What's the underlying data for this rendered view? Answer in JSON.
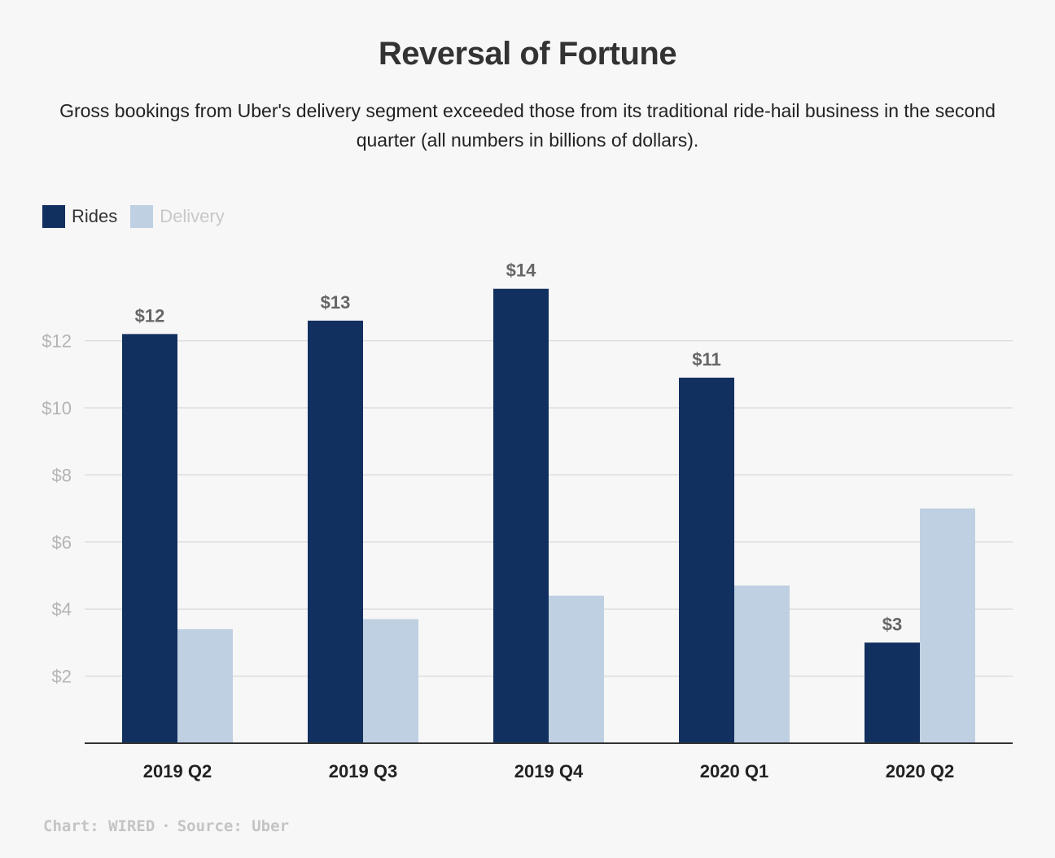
{
  "title": "Reversal of Fortune",
  "subtitle": "Gross bookings from Uber's delivery segment exceeded those from its traditional ride-hail business in the second quarter (all numbers in billions of dollars).",
  "footer": {
    "chart_credit": "Chart: WIRED",
    "separator": "·",
    "source": "Source: Uber"
  },
  "colors": {
    "rides": "#12305f",
    "delivery": "#bfd0e2",
    "rides_legend_text": "#333333",
    "delivery_legend_text": "#c8c8c8",
    "grid": "#dddddd",
    "axis_tick_text": "#b4b4b4",
    "value_label_text": "#666666"
  },
  "chart_data": {
    "type": "bar",
    "categories": [
      "2019 Q2",
      "2019 Q3",
      "2019 Q4",
      "2020 Q1",
      "2020 Q2"
    ],
    "series": [
      {
        "name": "Rides",
        "values": [
          12.2,
          12.6,
          13.55,
          10.9,
          3.0
        ],
        "labels": [
          "$12",
          "$13",
          "$14",
          "$11",
          "$3"
        ]
      },
      {
        "name": "Delivery",
        "values": [
          3.4,
          3.7,
          4.4,
          4.7,
          7.0
        ]
      }
    ],
    "y_ticks": [
      {
        "value": 2,
        "label": "$2"
      },
      {
        "value": 4,
        "label": "$4"
      },
      {
        "value": 6,
        "label": "$6"
      },
      {
        "value": 8,
        "label": "$8"
      },
      {
        "value": 10,
        "label": "$10"
      },
      {
        "value": 12,
        "label": "$12"
      }
    ],
    "ylim": [
      0,
      14
    ],
    "grid": true,
    "legend_position": "top-left"
  }
}
